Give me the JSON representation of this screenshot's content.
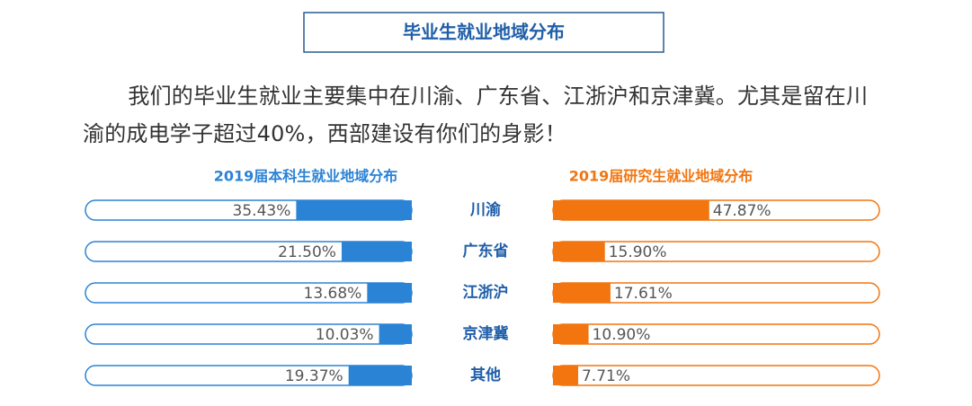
{
  "chart_data": {
    "type": "butterfly",
    "title": "毕业生就业地域分布",
    "subtitle": "我们的毕业生就业主要集中在川渝、广东省、江浙沪和京津冀。尤其是留在川渝的成电学子超过40%，西部建设有你们的身影！",
    "categories": [
      "川渝",
      "广东省",
      "江浙沪",
      "京津冀",
      "其他"
    ],
    "xlim": [
      0,
      100
    ],
    "series": [
      {
        "name": "2019届本科生就业地域分布",
        "color": "#2b83d6",
        "values": [
          35.43,
          21.5,
          13.68,
          10.03,
          19.37
        ],
        "value_labels": [
          "35.43%",
          "21.50%",
          "13.68%",
          "10.03%",
          "19.37%"
        ]
      },
      {
        "name": "2019届研究生就业地域分布",
        "color": "#f2750f",
        "values": [
          47.87,
          15.9,
          17.61,
          10.9,
          7.71
        ],
        "value_labels": [
          "47.87%",
          "15.90%",
          "17.61%",
          "10.90%",
          "7.71%"
        ]
      }
    ]
  }
}
